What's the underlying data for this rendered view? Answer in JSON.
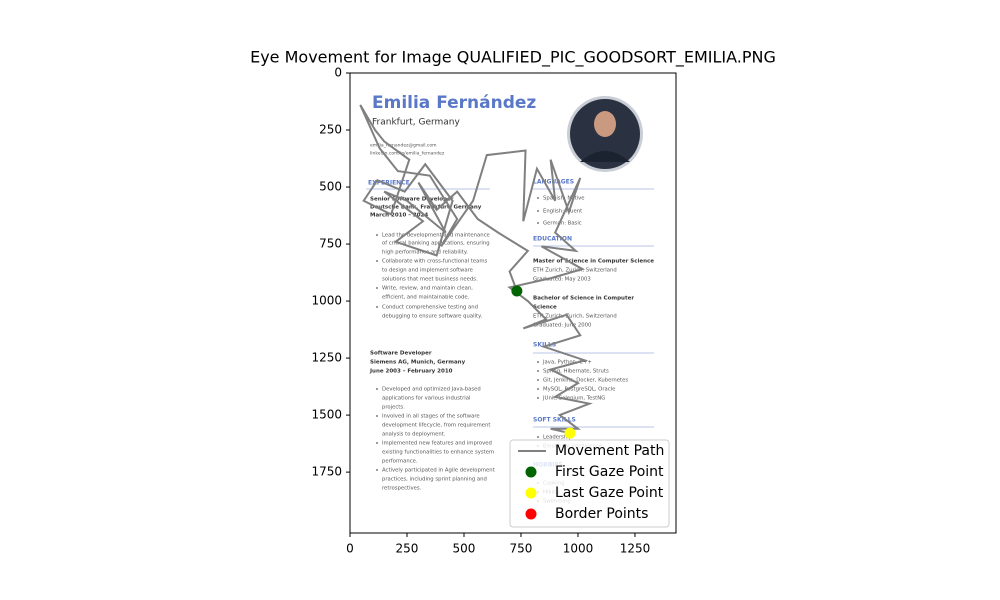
{
  "chart_data": {
    "type": "line",
    "title": "Eye Movement for Image QUALIFIED_PIC_GOODSORT_EMILIA.PNG",
    "xlim": [
      0,
      1430
    ],
    "ylim": [
      2017,
      0
    ],
    "xticks": [
      0,
      250,
      500,
      750,
      1000,
      1250
    ],
    "yticks": [
      0,
      250,
      500,
      750,
      1000,
      1250,
      1500,
      1750
    ],
    "legend": "lower right",
    "series": [
      {
        "name": "Movement Path",
        "color": "#808080",
        "mode": "line",
        "x": [
          732,
          700,
          780,
          650,
          560,
          470,
          380,
          300,
          420,
          250,
          150,
          320,
          200,
          380,
          450,
          330,
          240,
          120,
          60,
          180,
          260,
          150,
          110,
          45,
          130,
          210,
          350,
          470,
          400,
          540,
          600,
          770,
          760,
          820,
          900,
          880,
          960,
          1010,
          900,
          990,
          840,
          1020,
          880,
          700,
          780,
          860,
          760,
          950,
          1010,
          850,
          1030,
          880,
          1000,
          900,
          1050,
          920,
          1000,
          880,
          965
        ],
        "values": [
          956,
          870,
          780,
          700,
          640,
          520,
          600,
          480,
          700,
          560,
          520,
          650,
          740,
          800,
          560,
          400,
          520,
          470,
          560,
          620,
          380,
          300,
          250,
          140,
          330,
          430,
          450,
          640,
          760,
          560,
          360,
          340,
          650,
          420,
          560,
          380,
          610,
          460,
          700,
          780,
          760,
          860,
          900,
          940,
          1000,
          1080,
          1120,
          1060,
          1150,
          1200,
          1260,
          1300,
          1360,
          1420,
          1450,
          1500,
          1560,
          1560,
          1579
        ]
      },
      {
        "name": "First Gaze Point",
        "color": "#006400",
        "mode": "scatter",
        "x": [
          732
        ],
        "values": [
          956
        ]
      },
      {
        "name": "Last Gaze Point",
        "color": "#ffff00",
        "mode": "scatter",
        "x": [
          965
        ],
        "values": [
          1579
        ]
      },
      {
        "name": "Border Points",
        "color": "#ff0000",
        "mode": "scatter",
        "x": [],
        "values": []
      }
    ],
    "image_text": [
      "Emilia Fernández",
      "Frankfurt, Germany",
      "emilia_fernandez@gmail.com",
      "linkedin.com/in/emilia_fernandez",
      "EXPERIENCE",
      "Senior Software Developer",
      "Deutsche Bank, Frankfurt, Germany",
      "March 2010 – 2024",
      "Lead the development and maintenance",
      "of critical banking applications, ensuring",
      "high performance and reliability.",
      "Collaborate with cross-functional teams",
      "to design and implement software",
      "solutions that meet business needs.",
      "Write, review, and maintain clean,",
      "efficient, and maintainable code.",
      "Conduct comprehensive testing and",
      "debugging to ensure software quality.",
      "Software Developer",
      "Siemens AG, Munich, Germany",
      "June 2003 – February 2010",
      "Developed and optimized Java-based",
      "applications for various industrial",
      "projects.",
      "Involved in all stages of the software",
      "development lifecycle, from requirement",
      "analysis to deployment.",
      "Implemented new features and improved",
      "existing functionalities to enhance system",
      "performance.",
      "Actively participated in Agile development",
      "practices, including sprint planning and",
      "retrospectives.",
      "LANGUAGES",
      "Spanish: Native",
      "English: Fluent",
      "German: Basic",
      "EDUCATION",
      "Master of Science in Computer Science",
      "ETH Zurich, Zurich, Switzerland",
      "Graduated: May 2003",
      "Bachelor of Science in Computer",
      "Science",
      "ETH Zurich, Zurich, Switzerland",
      "Graduated: June 2000",
      "SKILLS",
      "Java, Python, C++",
      "Spring, Hibernate, Struts",
      "Git, Jenkins, Docker, Kubernetes",
      "MySQL, PostgreSQL, Oracle",
      "JUnit, Selenium, TestNG",
      "SOFT SKILLS",
      "Leadership",
      "Emotional Intelligence",
      "HOBBIES",
      "Cooking",
      "Hiking",
      "Swimming"
    ]
  }
}
